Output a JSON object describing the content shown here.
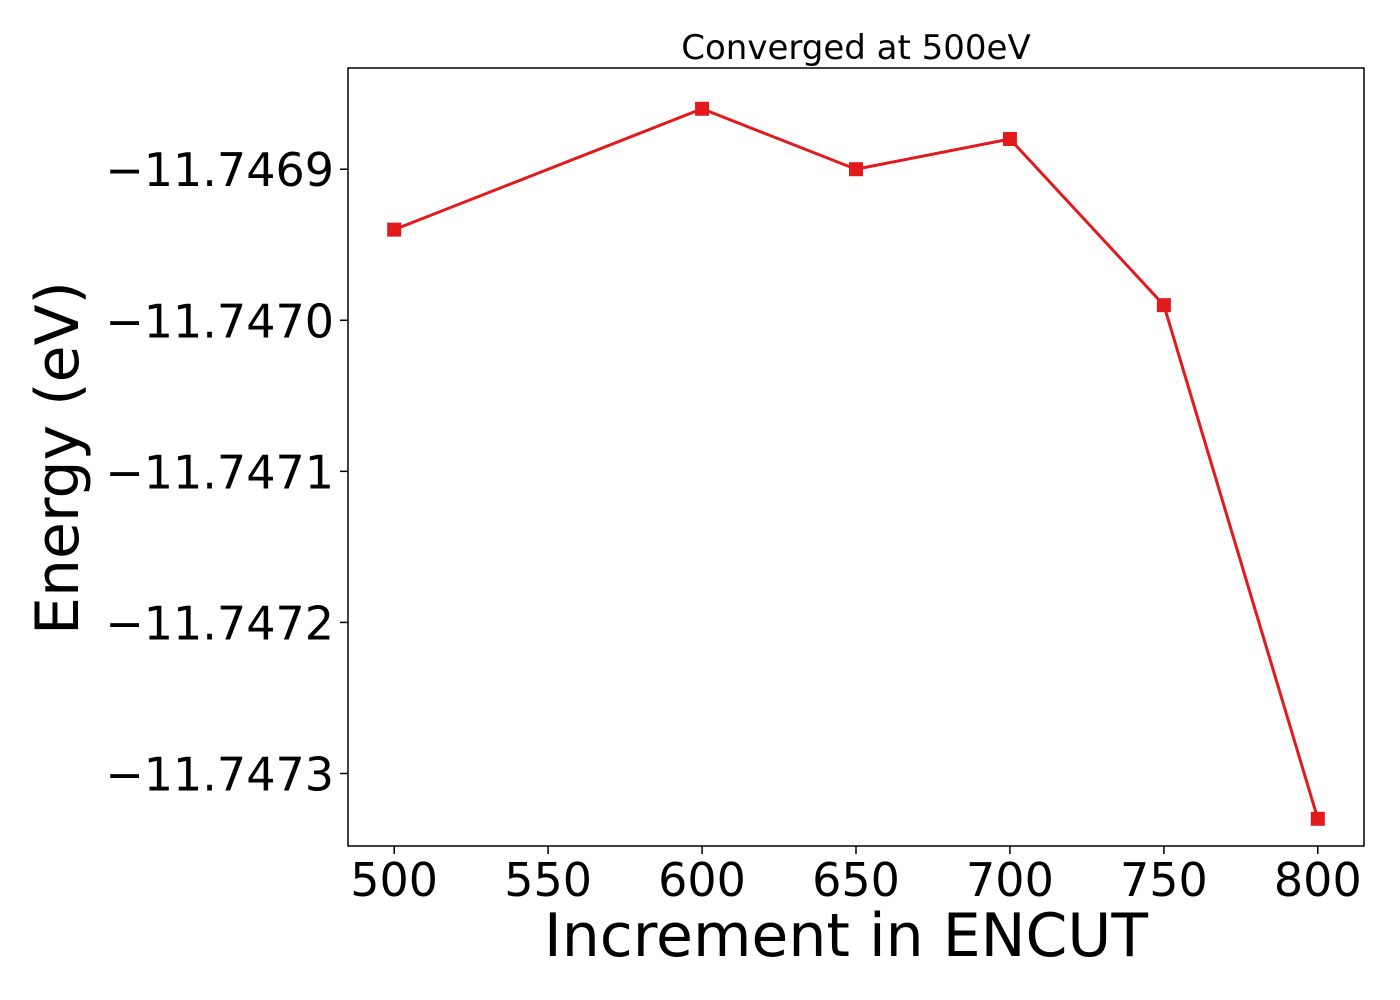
{
  "chart_data": {
    "type": "line",
    "title": "Converged at 500eV",
    "xlabel": "Increment in ENCUT",
    "ylabel": "Energy (eV)",
    "x": [
      500,
      600,
      650,
      700,
      750,
      800
    ],
    "series": [
      {
        "color": "#e31a1c",
        "marker": "square",
        "values": [
          -11.74694,
          -11.74686,
          -11.7469,
          -11.74688,
          -11.74699,
          -11.74733
        ]
      }
    ],
    "xlim": [
      485,
      815
    ],
    "ylim": [
      -11.747348,
      -11.746833
    ],
    "xticks": [
      500,
      550,
      600,
      650,
      700,
      750,
      800
    ],
    "xtick_labels": [
      "500",
      "550",
      "600",
      "650",
      "700",
      "750",
      "800"
    ],
    "yticks": [
      -11.7469,
      -11.747,
      -11.7471,
      -11.7472,
      -11.7473
    ],
    "ytick_labels": [
      "−11.7469",
      "−11.7470",
      "−11.7471",
      "−11.7472",
      "−11.7473"
    ],
    "grid": false,
    "legend": "none"
  }
}
